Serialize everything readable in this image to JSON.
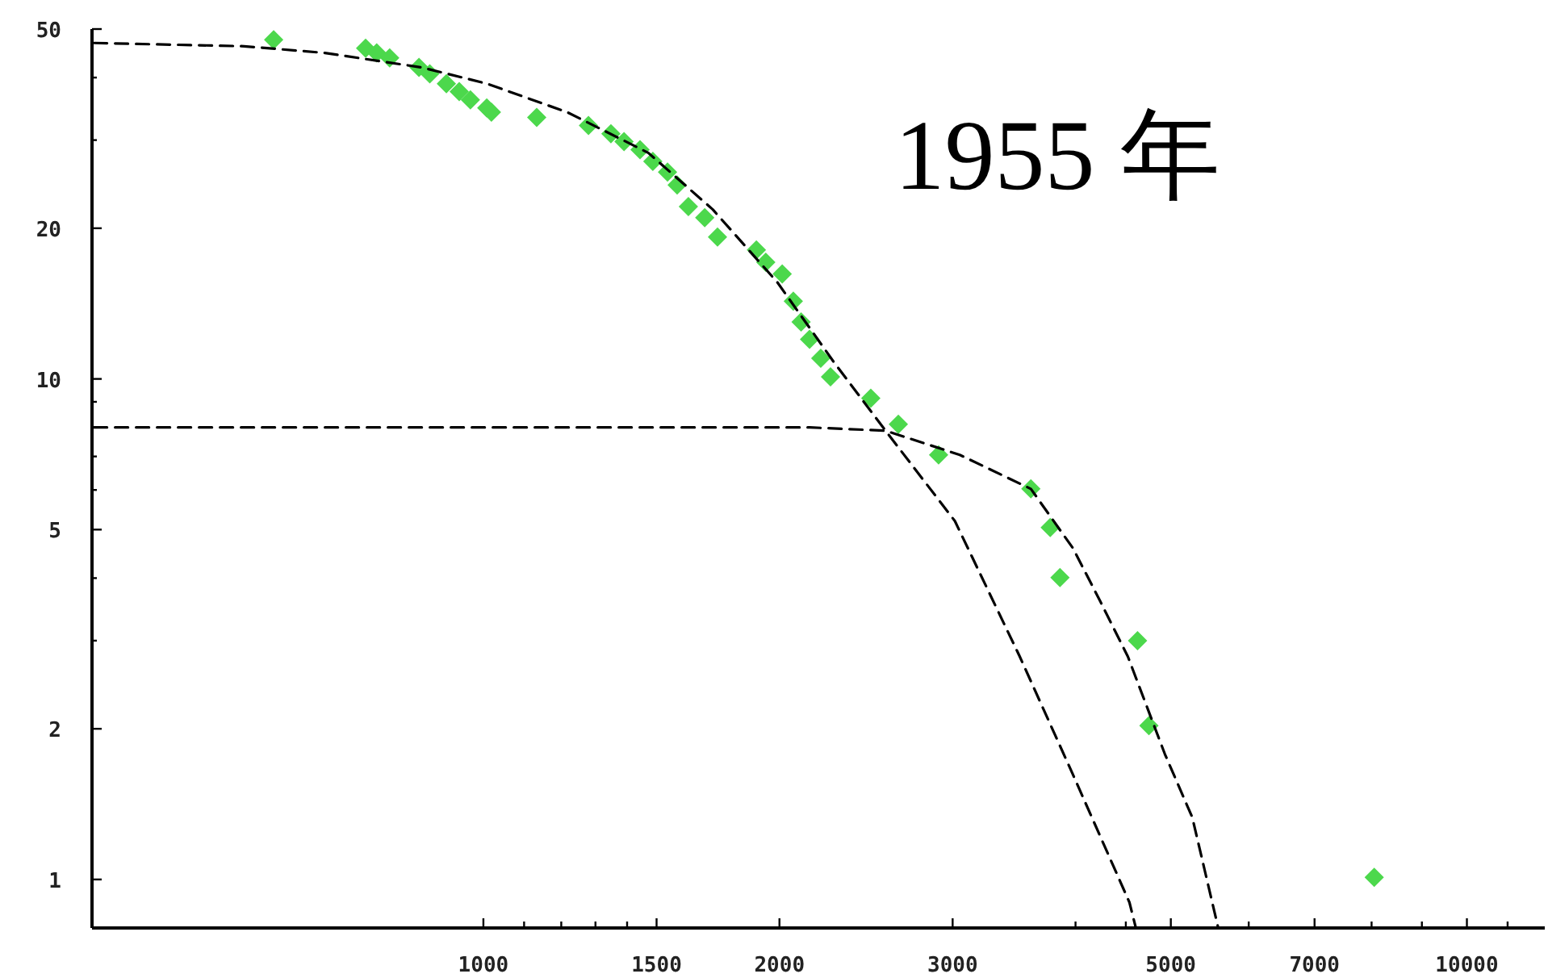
{
  "chart_data": {
    "type": "scatter",
    "title": "1955 年",
    "log": "xy",
    "xlim": [
      400,
      12000
    ],
    "ylim": [
      0.8,
      50
    ],
    "xticks": [
      1000,
      {
        "value": 1100,
        "label": null
      },
      {
        "value": 1200,
        "label": null
      },
      {
        "value": 1300,
        "label": null
      },
      {
        "value": 1400,
        "label": null
      },
      1500,
      2000,
      3000,
      {
        "value": 4000,
        "label": null
      },
      {
        "value": 4500,
        "label": null
      },
      5000,
      {
        "value": 6000,
        "label": null
      },
      7000,
      {
        "value": 8000,
        "label": null
      },
      {
        "value": 9000,
        "label": null
      },
      10000,
      {
        "value": 11000,
        "label": null
      }
    ],
    "yticks": [
      1,
      2,
      {
        "value": 3,
        "label": null
      },
      {
        "value": 4,
        "label": null
      },
      5,
      {
        "value": 6,
        "label": null
      },
      {
        "value": 7,
        "label": null
      },
      {
        "value": 8,
        "label": null
      },
      {
        "value": 9,
        "label": null
      },
      10,
      20,
      {
        "value": 30,
        "label": null
      },
      {
        "value": 40,
        "label": null
      },
      50
    ],
    "grid": false,
    "series": [
      {
        "marker": "diamond",
        "color": "#4cd84c",
        "x": [
          612,
          759,
          779,
          803,
          860,
          882,
          917,
          945,
          970,
          1008,
          1019,
          1133,
          1279,
          1348,
          1390,
          1443,
          1487,
          1539,
          1574,
          1616,
          1679,
          1730,
          1895,
          1937,
          2013,
          2066,
          2104,
          2146,
          2203,
          2254,
          2477,
          2642,
          2903,
          3603,
          3770,
          3857,
          4625,
          4750,
          8050
        ],
        "values": [
          47.6,
          45.8,
          44.8,
          43.8,
          41.9,
          40.7,
          38.9,
          37.5,
          36.1,
          34.8,
          34.1,
          33.3,
          32.1,
          30.9,
          29.8,
          28.7,
          27.2,
          25.9,
          24.4,
          22.1,
          21.0,
          19.2,
          18.1,
          17.1,
          16.2,
          14.3,
          13.0,
          12.0,
          11.0,
          10.1,
          9.15,
          8.12,
          7.05,
          6.03,
          5.05,
          4.01,
          3.0,
          2.03,
          1.01
        ]
      },
      {
        "type": "line",
        "marker": "none",
        "line_style": "dashed",
        "color": "#000000",
        "x": [
          402,
          571,
          690,
          866,
          1008,
          1217,
          1471,
          1711,
          1990,
          2272,
          2564,
          3016,
          3510,
          3976,
          4538,
          4607
        ],
        "values": [
          46.9,
          46.2,
          44.8,
          41.9,
          38.9,
          34.1,
          28.3,
          21.8,
          15.6,
          10.8,
          7.88,
          5.2,
          2.79,
          1.62,
          0.9,
          0.8
        ]
      },
      {
        "type": "line",
        "marker": "none",
        "line_style": "dashed",
        "color": "#000000",
        "x": [
          402,
          1008,
          2147,
          2564,
          3051,
          3603,
          3976,
          4240,
          4521,
          4931,
          5258,
          5587
        ],
        "values": [
          8.0,
          8.0,
          8.0,
          7.88,
          7.05,
          6.03,
          4.59,
          3.59,
          2.79,
          1.78,
          1.33,
          0.8
        ]
      }
    ]
  }
}
